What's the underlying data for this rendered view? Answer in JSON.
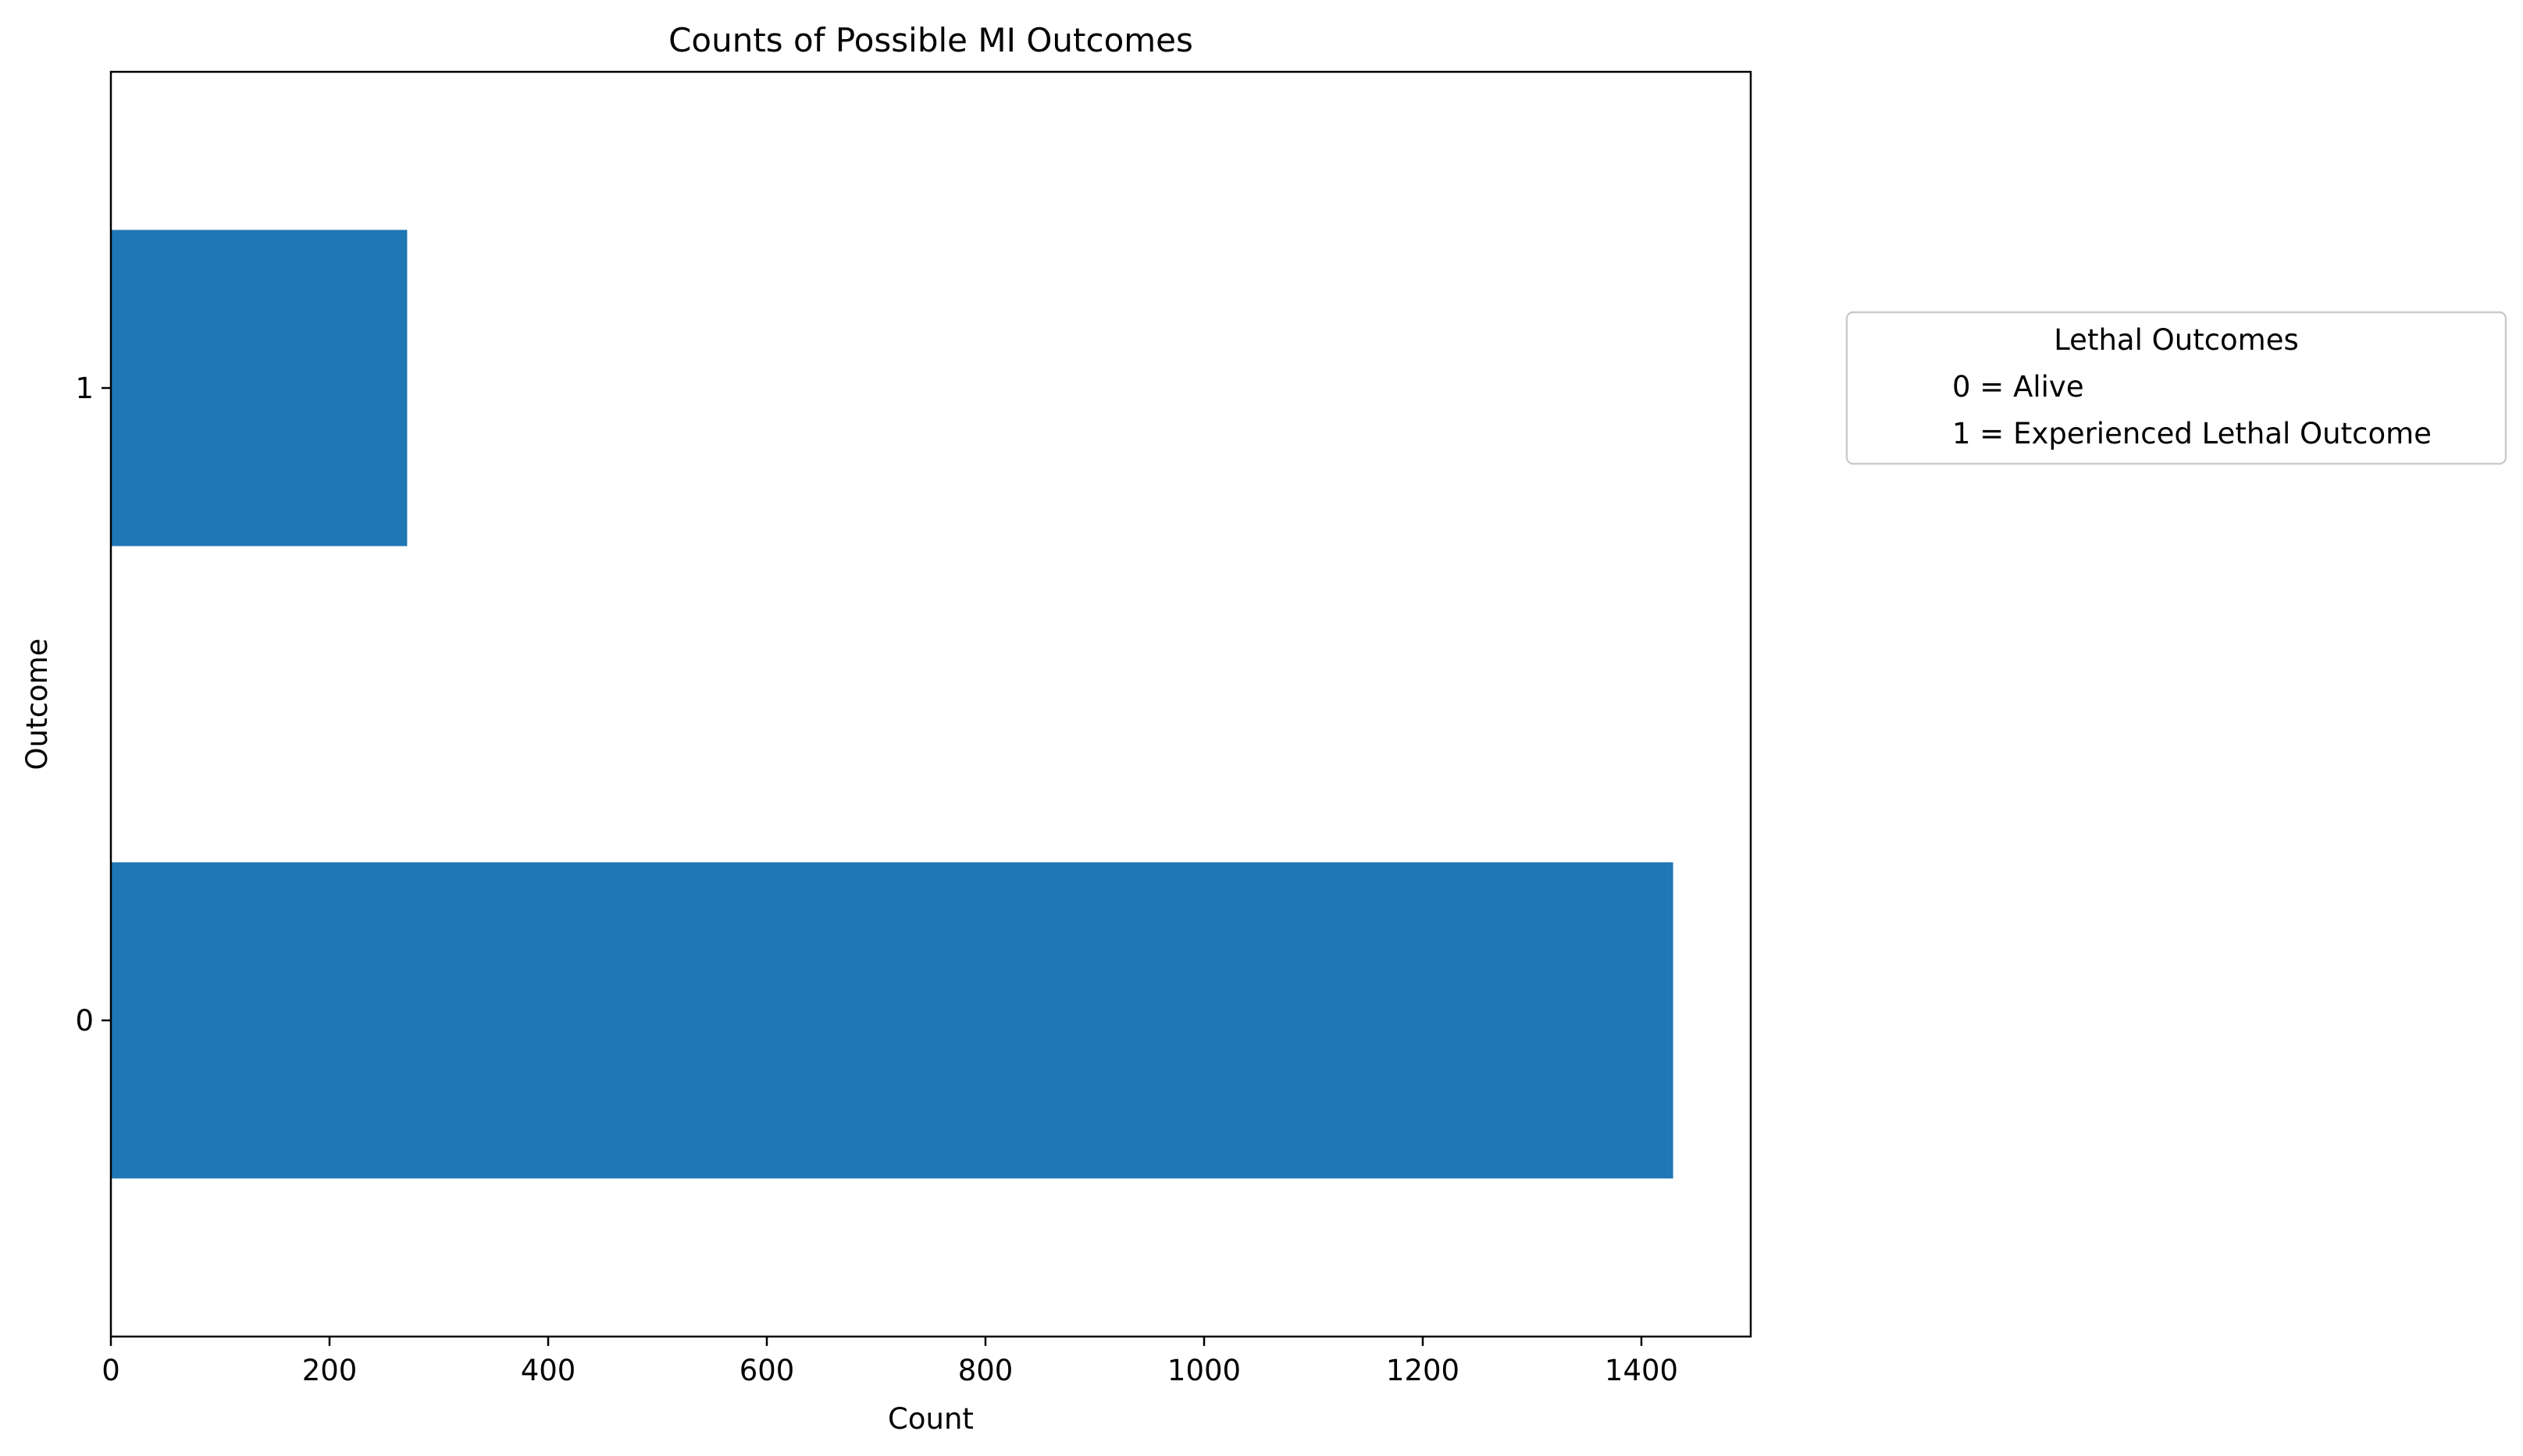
{
  "chart_data": {
    "type": "bar",
    "orientation": "horizontal",
    "title": "Counts of Possible MI Outcomes",
    "xlabel": "Count",
    "ylabel": "Outcome",
    "categories": [
      "0",
      "1"
    ],
    "values": [
      1429,
      271
    ],
    "xlim": [
      0,
      1500
    ],
    "xticks": [
      0,
      200,
      400,
      600,
      800,
      1000,
      1200,
      1400
    ],
    "grid": false,
    "bar_color": "#1f77b4",
    "legend": {
      "placement": "outside-right",
      "title": "Lethal Outcomes",
      "entries": [
        "0 = Alive",
        "1 = Experienced Lethal Outcome"
      ]
    }
  }
}
